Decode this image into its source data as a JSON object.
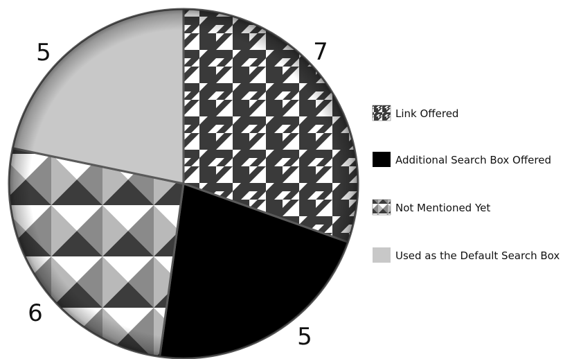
{
  "chart_data": {
    "type": "pie",
    "title": "",
    "series": [
      {
        "name": "",
        "values": [
          7,
          5,
          6,
          5
        ]
      }
    ],
    "categories": [
      "Link Offered",
      "Additional Search Box Offered",
      "Not Mentioned Yet",
      "Used as the Default Search Box"
    ],
    "data_labels": [
      "7",
      "5",
      "6",
      "5"
    ],
    "start_angle_deg": 0,
    "direction": "clockwise",
    "legend": {
      "position": "right",
      "items": [
        {
          "label": "Link Offered",
          "pattern": "houndstooth"
        },
        {
          "label": "Additional Search Box Offered",
          "pattern": "solid-black"
        },
        {
          "label": "Not Mentioned Yet",
          "pattern": "pyramid"
        },
        {
          "label": "Used as the Default Search Box",
          "pattern": "solid-light-gray"
        }
      ]
    },
    "colors": {
      "houndstooth_dark": "#3a3a3a",
      "houndstooth_light": "#ffffff",
      "solid_black": "#000000",
      "pyramid_dark": "#3c3c3c",
      "pyramid_mid": "#8a8a8a",
      "pyramid_light": "#b9b9b9",
      "solid_light_gray": "#c8c8c8",
      "edge": "#5a5a5a"
    }
  }
}
